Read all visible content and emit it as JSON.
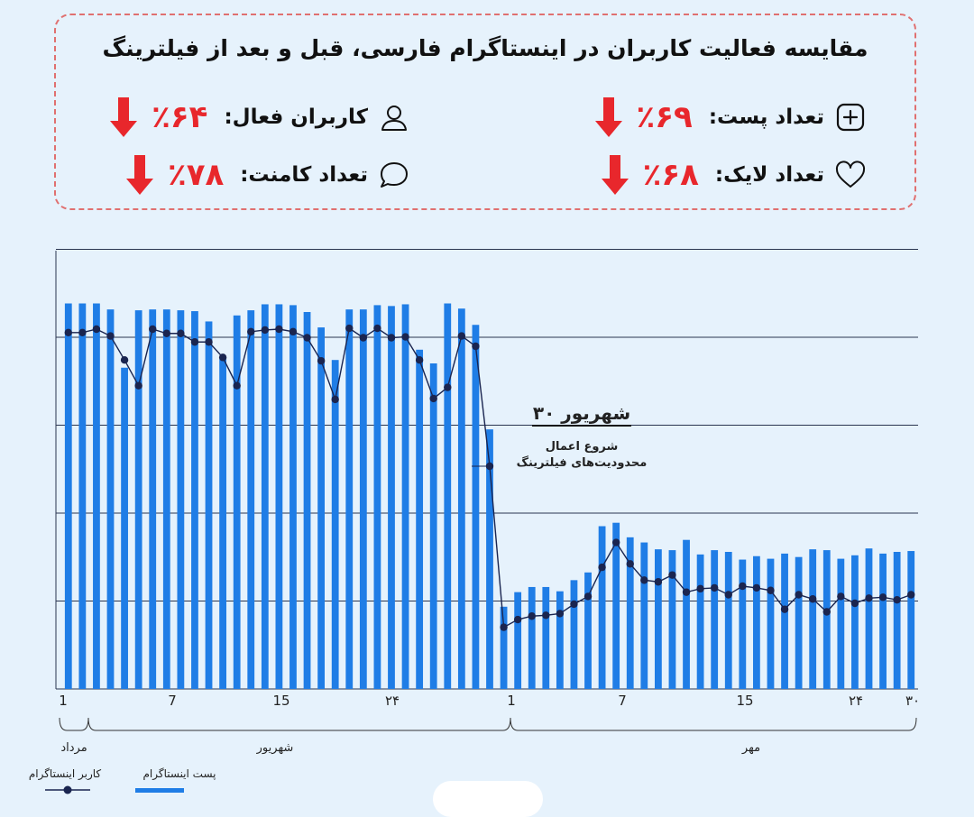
{
  "header": {
    "title": "مقایسه فعالیت کاربران در اینستاگرام فارسی، قبل و بعد از فیلترینگ",
    "stats": [
      {
        "label": "تعداد پست:",
        "value": "٪۶۹",
        "icon": "plus-square-icon",
        "direction": "down"
      },
      {
        "label": "کاربران فعال:",
        "value": "٪۶۴",
        "icon": "user-icon",
        "direction": "down"
      },
      {
        "label": "تعداد لایک:",
        "value": "٪۶۸",
        "icon": "heart-icon",
        "direction": "down"
      },
      {
        "label": "تعداد کامنت:",
        "value": "٪۷۸",
        "icon": "comment-icon",
        "direction": "down"
      }
    ]
  },
  "colors": {
    "bars": "#1f7de6",
    "line": "#1a2550",
    "accent": "#e8272c",
    "grid": "#2a3550"
  },
  "chart_data": {
    "type": "bar",
    "grid": true,
    "x_ticks": [
      "1",
      "7",
      "15",
      "۲۴",
      "1",
      "7",
      "15",
      "۲۴",
      "۳۰"
    ],
    "month_labels": [
      "مرداد",
      "شهریور",
      "مهر"
    ],
    "legend": {
      "bars": "پست اینستاگرام",
      "line": "کاربر اینستاگرام"
    },
    "annotation": {
      "title": "۳۰ شهریور",
      "line1": "شروع اعمال",
      "line2": "محدودیت‌های فیلترینگ"
    },
    "series": [
      {
        "name": "پست اینستاگرام",
        "type": "bar",
        "values": [
          450,
          450,
          450,
          443,
          375,
          442,
          443,
          443,
          442,
          441,
          429,
          385,
          436,
          442,
          449,
          449,
          448,
          440,
          422,
          384,
          443,
          443,
          448,
          447,
          449,
          396,
          380,
          450,
          444,
          425,
          303,
          96,
          113,
          119,
          119,
          114,
          127,
          136,
          190,
          194,
          177,
          171,
          163,
          162,
          174,
          157,
          162,
          160,
          151,
          155,
          152,
          158,
          154,
          163,
          162,
          152,
          156,
          164,
          158,
          160,
          161
        ]
      },
      {
        "name": "کاربر اینستاگرام",
        "type": "line",
        "values": [
          416,
          416,
          420,
          412,
          384,
          354,
          420,
          415,
          415,
          405,
          405,
          387,
          354,
          417,
          419,
          420,
          417,
          410,
          383,
          338,
          421,
          410,
          421,
          410,
          411,
          384,
          339,
          352,
          412,
          400,
          260,
          72,
          81,
          85,
          86,
          88,
          99,
          108,
          142,
          171,
          146,
          127,
          125,
          133,
          113,
          117,
          118,
          110,
          120,
          118,
          115,
          93,
          110,
          105,
          90,
          108,
          100,
          106,
          107,
          104,
          110
        ]
      }
    ]
  }
}
